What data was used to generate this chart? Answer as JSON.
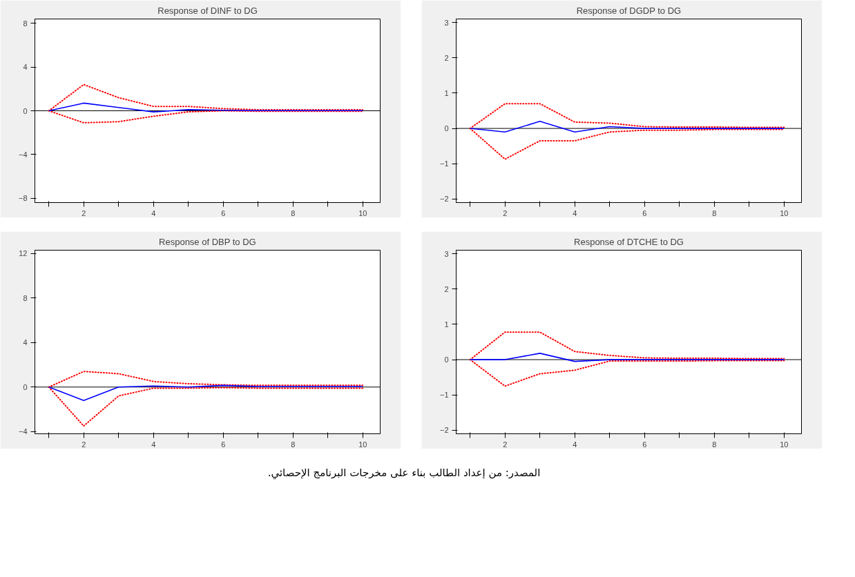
{
  "chart_data": [
    {
      "type": "line",
      "title": "Response of DINF to DG",
      "x": [
        1,
        2,
        3,
        4,
        5,
        6,
        7,
        8,
        9,
        10
      ],
      "xlim": [
        0.6,
        10.5
      ],
      "xticks": [
        {
          "value": 1,
          "label": null
        },
        2,
        {
          "value": 3,
          "label": null
        },
        4,
        {
          "value": 5,
          "label": null
        },
        6,
        {
          "value": 7,
          "label": null
        },
        8,
        {
          "value": 9,
          "label": null
        },
        10
      ],
      "ylim": [
        -8.4,
        8.4
      ],
      "yticks": [
        -8,
        -4,
        0,
        4,
        8
      ],
      "grid": false,
      "ref_lines": [
        {
          "axis": "y",
          "value": 0,
          "color": "#000000"
        }
      ],
      "series": [
        {
          "color": "#0000ff",
          "line_style": "solid",
          "values": [
            0,
            0.7,
            0.3,
            -0.1,
            0.1,
            0.05,
            0.02,
            0.02,
            0.02,
            0.02
          ]
        },
        {
          "color": "#ff0000",
          "line_style": "dotted",
          "values": [
            0,
            2.4,
            1.2,
            0.4,
            0.4,
            0.2,
            0.1,
            0.1,
            0.1,
            0.1
          ]
        },
        {
          "color": "#ff0000",
          "line_style": "dotted",
          "values": [
            0,
            -1.1,
            -1.0,
            -0.5,
            -0.1,
            0,
            -0.05,
            -0.05,
            -0.05,
            -0.05
          ]
        }
      ]
    },
    {
      "type": "line",
      "title": "Response of DGDP to DG",
      "x": [
        1,
        2,
        3,
        4,
        5,
        6,
        7,
        8,
        9,
        10
      ],
      "xlim": [
        0.6,
        10.5
      ],
      "xticks": [
        {
          "value": 1,
          "label": null
        },
        2,
        {
          "value": 3,
          "label": null
        },
        4,
        {
          "value": 5,
          "label": null
        },
        6,
        {
          "value": 7,
          "label": null
        },
        8,
        {
          "value": 9,
          "label": null
        },
        10
      ],
      "ylim": [
        -2.1,
        3.1
      ],
      "yticks": [
        -2,
        -1,
        0,
        1,
        2,
        3
      ],
      "grid": false,
      "ref_lines": [
        {
          "axis": "y",
          "value": 0,
          "color": "#000000"
        }
      ],
      "series": [
        {
          "color": "#0000ff",
          "line_style": "solid",
          "values": [
            0,
            -0.1,
            0.2,
            -0.1,
            0.05,
            0,
            0,
            0,
            0,
            0
          ]
        },
        {
          "color": "#ff0000",
          "line_style": "dotted",
          "values": [
            0,
            0.7,
            0.7,
            0.18,
            0.15,
            0.05,
            0.04,
            0.04,
            0.03,
            0.03
          ]
        },
        {
          "color": "#ff0000",
          "line_style": "dotted",
          "values": [
            0,
            -0.87,
            -0.35,
            -0.35,
            -0.1,
            -0.05,
            -0.05,
            -0.03,
            -0.03,
            -0.03
          ]
        }
      ]
    },
    {
      "type": "line",
      "title": "Response of DBP to DG",
      "x": [
        1,
        2,
        3,
        4,
        5,
        6,
        7,
        8,
        9,
        10
      ],
      "xlim": [
        0.6,
        10.5
      ],
      "xticks": [
        {
          "value": 1,
          "label": null
        },
        2,
        {
          "value": 3,
          "label": null
        },
        4,
        {
          "value": 5,
          "label": null
        },
        6,
        {
          "value": 7,
          "label": null
        },
        8,
        {
          "value": 9,
          "label": null
        },
        10
      ],
      "ylim": [
        -4.2,
        12.3
      ],
      "yticks": [
        -4,
        0,
        4,
        8,
        12
      ],
      "grid": false,
      "ref_lines": [
        {
          "axis": "y",
          "value": 0,
          "color": "#000000"
        }
      ],
      "series": [
        {
          "color": "#0000ff",
          "line_style": "solid",
          "values": [
            0,
            -1.2,
            0,
            0.1,
            0,
            0.15,
            0.05,
            0.05,
            0.05,
            0.05
          ]
        },
        {
          "color": "#ff0000",
          "line_style": "dotted",
          "values": [
            0,
            1.4,
            1.2,
            0.5,
            0.3,
            0.2,
            0.15,
            0.15,
            0.15,
            0.15
          ]
        },
        {
          "color": "#ff0000",
          "line_style": "dotted",
          "values": [
            0,
            -3.5,
            -0.8,
            -0.1,
            -0.1,
            -0.05,
            -0.1,
            -0.1,
            -0.1,
            -0.1
          ]
        }
      ]
    },
    {
      "type": "line",
      "title": "Response of DTCHE to DG",
      "x": [
        1,
        2,
        3,
        4,
        5,
        6,
        7,
        8,
        9,
        10
      ],
      "xlim": [
        0.6,
        10.5
      ],
      "xticks": [
        {
          "value": 1,
          "label": null
        },
        2,
        {
          "value": 3,
          "label": null
        },
        4,
        {
          "value": 5,
          "label": null
        },
        6,
        {
          "value": 7,
          "label": null
        },
        8,
        {
          "value": 9,
          "label": null
        },
        10
      ],
      "ylim": [
        -2.1,
        3.1
      ],
      "yticks": [
        -2,
        -1,
        0,
        1,
        2,
        3
      ],
      "grid": false,
      "ref_lines": [
        {
          "axis": "y",
          "value": 0,
          "color": "#000000"
        }
      ],
      "series": [
        {
          "color": "#0000ff",
          "line_style": "solid",
          "values": [
            0,
            0,
            0.18,
            -0.05,
            0,
            0,
            0,
            0,
            0,
            0
          ]
        },
        {
          "color": "#ff0000",
          "line_style": "dotted",
          "values": [
            0,
            0.78,
            0.78,
            0.23,
            0.12,
            0.05,
            0.04,
            0.04,
            0.03,
            0.03
          ]
        },
        {
          "color": "#ff0000",
          "line_style": "dotted",
          "values": [
            0,
            -0.75,
            -0.4,
            -0.3,
            -0.04,
            -0.04,
            -0.04,
            -0.03,
            -0.03,
            -0.03
          ]
        }
      ],
      "annotations": [
        "المصدر: من إعداد الطالب بناء على مخرجات البرنامج الإحصائي."
      ]
    }
  ]
}
